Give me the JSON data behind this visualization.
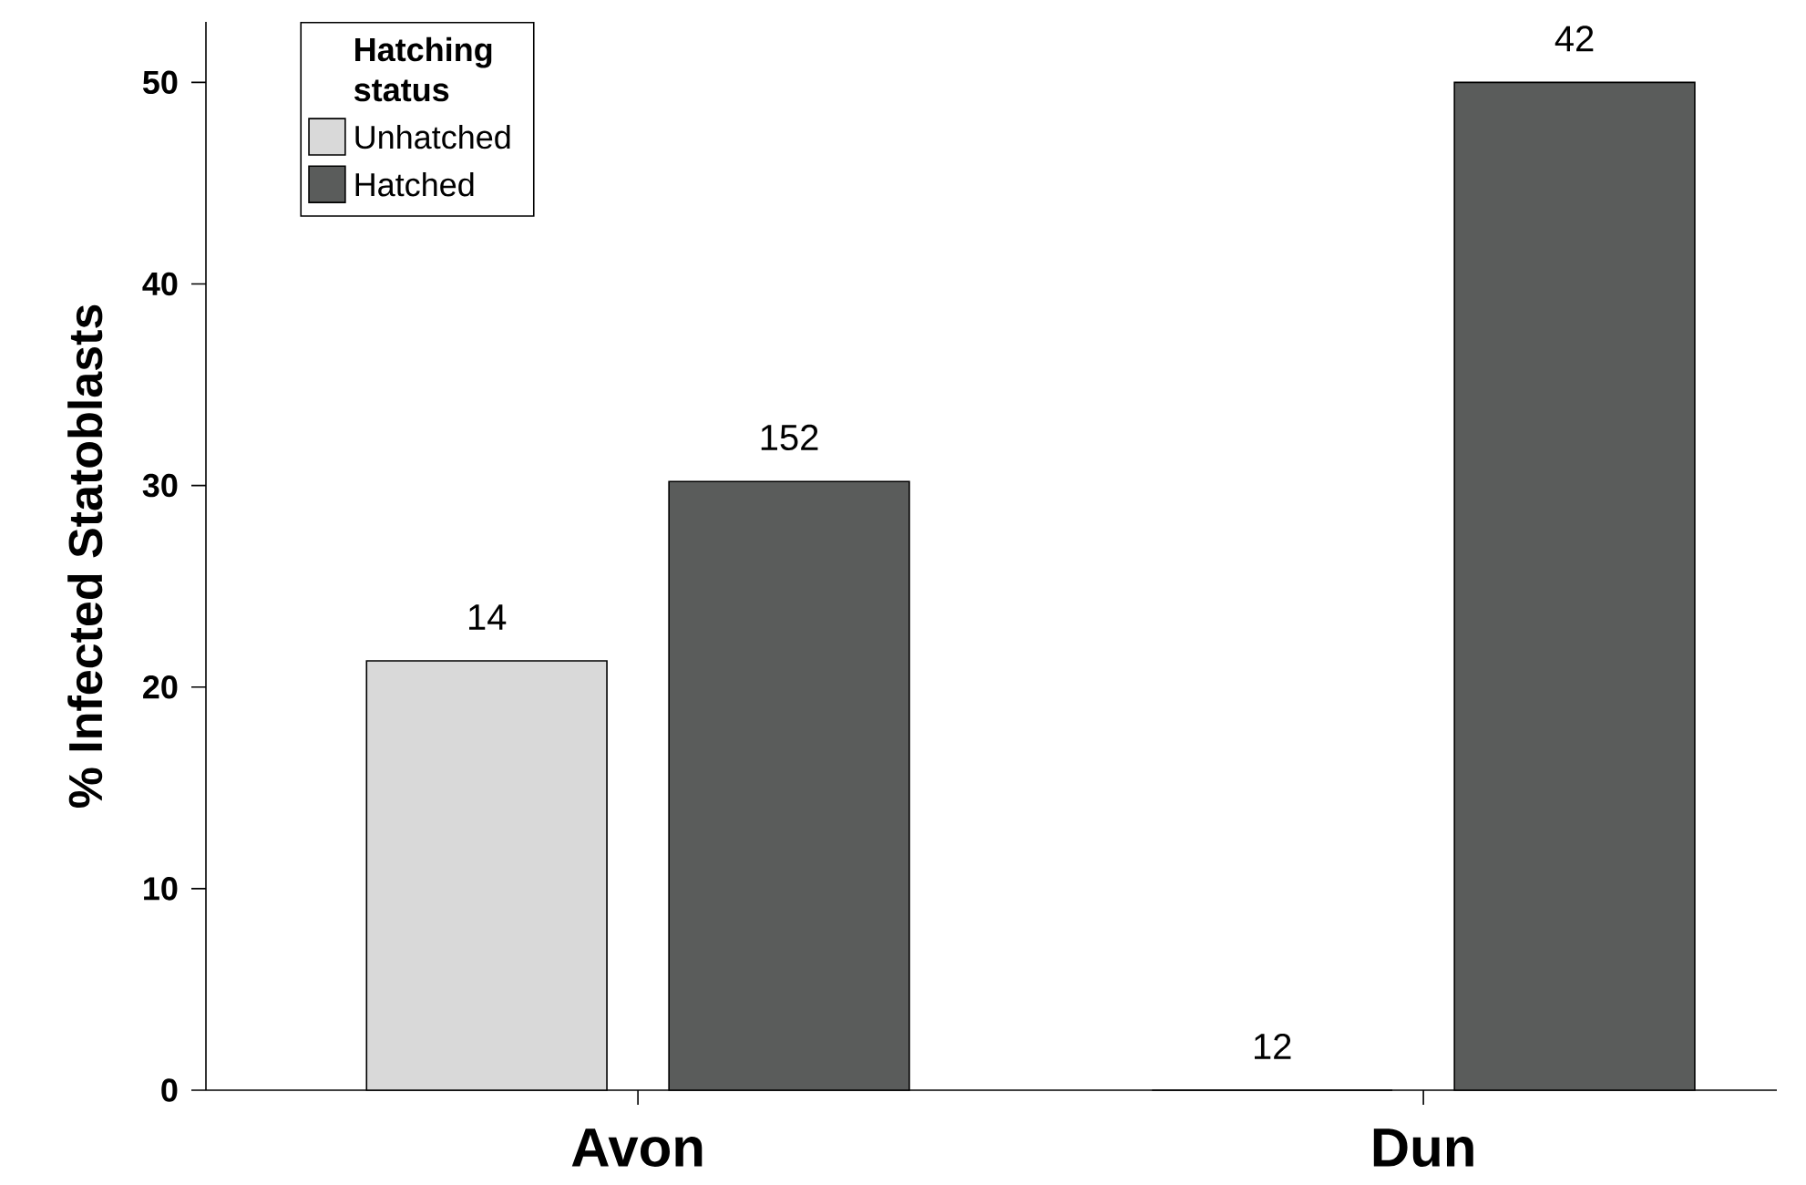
{
  "chart_data": {
    "type": "bar",
    "ylabel": "% Infected Statoblasts",
    "legend_title": "Hatching status",
    "legend": "top left",
    "categories": [
      "Avon",
      "Dun"
    ],
    "series": [
      {
        "name": "Unhatched",
        "color": "#d9d9d9",
        "values": [
          21.3,
          0
        ]
      },
      {
        "name": "Hatched",
        "color": "#5a5c5b",
        "values": [
          30.2,
          50.0
        ]
      }
    ],
    "annotations": [
      "14",
      "152",
      "12",
      "42"
    ],
    "ylim": [
      0,
      53
    ],
    "yticks": [
      0,
      10,
      20,
      30,
      40,
      50
    ],
    "grid": false
  }
}
